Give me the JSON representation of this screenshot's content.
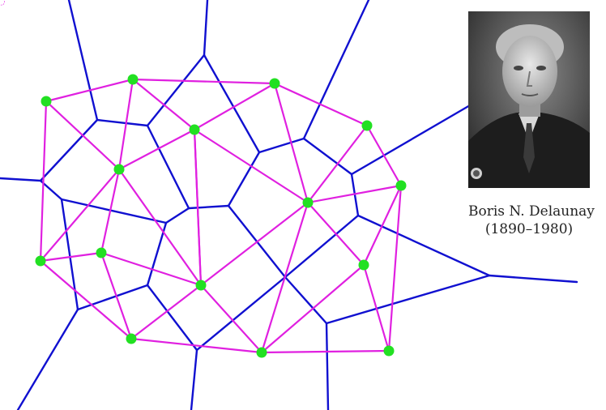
{
  "colors": {
    "voronoi_edges": "#1010d0",
    "delaunay_edges": "#e020e0",
    "sites": "#22e022",
    "caption_text": "#222222"
  },
  "portrait": {
    "icon": "person-portrait-photo",
    "caption_name": "Boris N. Delaunay",
    "caption_years": "(1890–1980)"
  }
}
